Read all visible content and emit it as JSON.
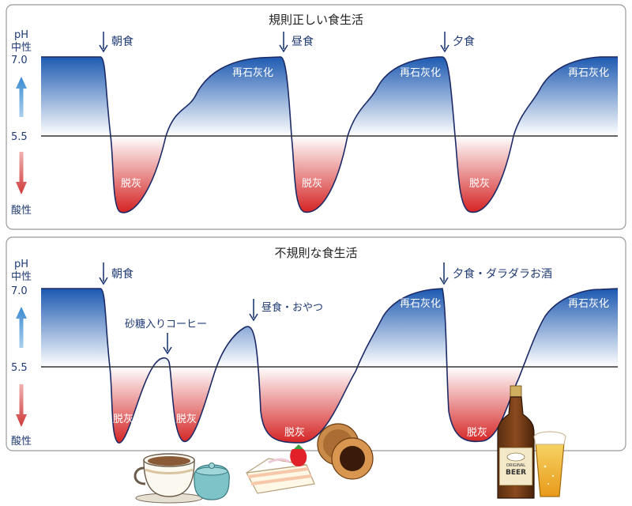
{
  "top": {
    "title": "規則正しい食生活",
    "axis": {
      "ph": "pH",
      "neutral": "中性",
      "ph_high": "7.0",
      "ph_mid": "5.5",
      "acid": "酸性"
    },
    "meals": [
      "朝食",
      "昼食",
      "夕食"
    ],
    "remineral": "再石灰化",
    "demineral": "脱灰"
  },
  "bottom": {
    "title": "不規則な食生活",
    "axis": {
      "ph": "pH",
      "neutral": "中性",
      "ph_high": "7.0",
      "ph_mid": "5.5",
      "acid": "酸性"
    },
    "events": [
      "朝食",
      "砂糖入りコーヒー",
      "昼食・おやつ",
      "夕食・ダラダラお酒"
    ],
    "remineral": "再石灰化",
    "demineral": "脱灰"
  },
  "illustrations": {
    "coffee_icon": "coffee-cup-icon",
    "sugar_icon": "sugar-pot-icon",
    "cake_icon": "strawberry-cake-icon",
    "snack_icon": "dorayaki-icon",
    "beer_bottle_icon": "beer-bottle-icon",
    "beer_glass_icon": "beer-glass-icon",
    "bottle_label_1": "ORIGINAL",
    "bottle_label_2": "BEER"
  },
  "colors": {
    "remineral": "#1a57b0",
    "demineral": "#d42020",
    "axis_up": "#4a9ad8",
    "axis_down": "#d84a4a",
    "text": "#1f3a73"
  }
}
